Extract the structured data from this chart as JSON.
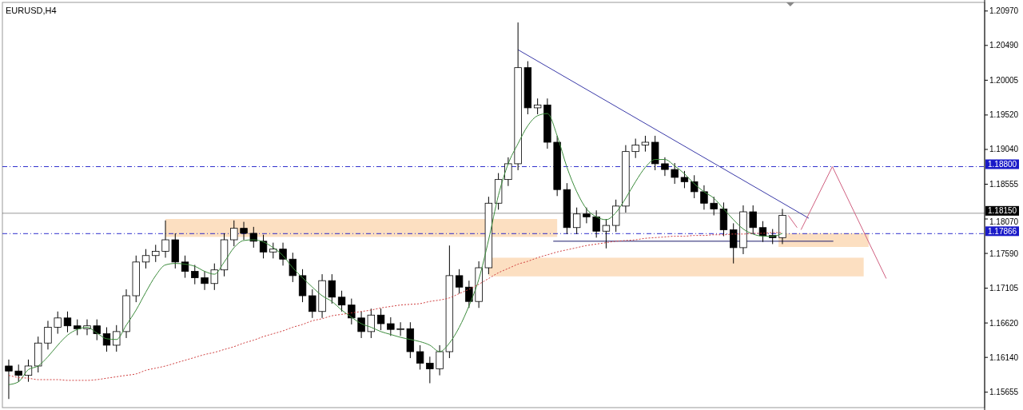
{
  "chart_data": {
    "type": "candlestick",
    "title": "EURUSD,H4",
    "categories": [
      null,
      null,
      null,
      null,
      null,
      null,
      null,
      null,
      null,
      null,
      null,
      null,
      null,
      null,
      null,
      null,
      null,
      null,
      null,
      null,
      null,
      null,
      null,
      null,
      null,
      null,
      null,
      null,
      null,
      null,
      null,
      null,
      null,
      null,
      null,
      null,
      null,
      null,
      null,
      null,
      null,
      null,
      null,
      null,
      null,
      null,
      null,
      null,
      null,
      null,
      null,
      null,
      null,
      null,
      null,
      null,
      null,
      null,
      null,
      null,
      null,
      null,
      null,
      null,
      null,
      null,
      null,
      null,
      null,
      null,
      null,
      null,
      null,
      null,
      null,
      null,
      null,
      null,
      null,
      null,
      null,
      null,
      null,
      null,
      null,
      null,
      null,
      null,
      null,
      null,
      null,
      null,
      null,
      null,
      null,
      null,
      null,
      null,
      null,
      null
    ],
    "ohlc": [
      [
        1.1602,
        1.1611,
        1.1556,
        1.1595
      ],
      [
        1.1595,
        1.1604,
        1.158,
        1.1589
      ],
      [
        1.1589,
        1.1611,
        1.158,
        1.1602
      ],
      [
        1.1602,
        1.1643,
        1.1593,
        1.1634
      ],
      [
        1.1634,
        1.1665,
        1.1625,
        1.1656
      ],
      [
        1.1656,
        1.1678,
        1.1647,
        1.1669
      ],
      [
        1.1669,
        1.1678,
        1.1649,
        1.1658
      ],
      [
        1.1658,
        1.1667,
        1.1645,
        1.1654
      ],
      [
        1.1654,
        1.1667,
        1.1645,
        1.1658
      ],
      [
        1.1658,
        1.1667,
        1.1638,
        1.1647
      ],
      [
        1.1647,
        1.1656,
        1.1622,
        1.1631
      ],
      [
        1.1631,
        1.1659,
        1.1622,
        1.165
      ],
      [
        1.165,
        1.1709,
        1.1641,
        1.17
      ],
      [
        1.17,
        1.1756,
        1.1691,
        1.1747
      ],
      [
        1.1747,
        1.1765,
        1.1738,
        1.1756
      ],
      [
        1.1756,
        1.1771,
        1.1747,
        1.1762
      ],
      [
        1.1762,
        1.1805,
        1.1753,
        1.1778
      ],
      [
        1.1778,
        1.1787,
        1.1738,
        1.1747
      ],
      [
        1.1747,
        1.1756,
        1.1725,
        1.1734
      ],
      [
        1.1734,
        1.1743,
        1.1716,
        1.1725
      ],
      [
        1.1725,
        1.1734,
        1.1708,
        1.1717
      ],
      [
        1.1717,
        1.1745,
        1.1708,
        1.1736
      ],
      [
        1.1736,
        1.1787,
        1.1727,
        1.1778
      ],
      [
        1.1778,
        1.1805,
        1.1769,
        1.1794
      ],
      [
        1.1794,
        1.1803,
        1.1778,
        1.1787
      ],
      [
        1.1787,
        1.1796,
        1.1767,
        1.1776
      ],
      [
        1.1776,
        1.1785,
        1.1752,
        1.1761
      ],
      [
        1.1761,
        1.1774,
        1.1752,
        1.1765
      ],
      [
        1.1765,
        1.1774,
        1.1742,
        1.1751
      ],
      [
        1.1751,
        1.176,
        1.1719,
        1.1728
      ],
      [
        1.1728,
        1.1737,
        1.1691,
        1.17
      ],
      [
        1.17,
        1.1709,
        1.1669,
        1.1678
      ],
      [
        1.1678,
        1.173,
        1.1669,
        1.1721
      ],
      [
        1.1721,
        1.173,
        1.1689,
        1.1698
      ],
      [
        1.1698,
        1.1707,
        1.1678,
        1.1687
      ],
      [
        1.1687,
        1.1696,
        1.166,
        1.1669
      ],
      [
        1.1669,
        1.1678,
        1.1641,
        1.165
      ],
      [
        1.165,
        1.1682,
        1.1641,
        1.1673
      ],
      [
        1.1673,
        1.1682,
        1.1652,
        1.1661
      ],
      [
        1.1661,
        1.167,
        1.1644,
        1.1653
      ],
      [
        1.1653,
        1.1663,
        1.1644,
        1.1654
      ],
      [
        1.1654,
        1.1663,
        1.1613,
        1.1622
      ],
      [
        1.1622,
        1.1631,
        1.1597,
        1.1606
      ],
      [
        1.1606,
        1.1615,
        1.1578,
        1.1598
      ],
      [
        1.1598,
        1.1631,
        1.1589,
        1.1622
      ],
      [
        1.1622,
        1.177,
        1.1613,
        1.1728
      ],
      [
        1.1728,
        1.1737,
        1.1703,
        1.1712
      ],
      [
        1.1712,
        1.1721,
        1.1683,
        1.1692
      ],
      [
        1.1692,
        1.1748,
        1.1683,
        1.1739
      ],
      [
        1.1739,
        1.1838,
        1.173,
        1.1829
      ],
      [
        1.1829,
        1.1871,
        1.182,
        1.1862
      ],
      [
        1.1862,
        1.1893,
        1.1853,
        1.1884
      ],
      [
        1.1884,
        1.2081,
        1.1875,
        1.2018
      ],
      [
        1.2018,
        1.2027,
        1.1953,
        1.1962
      ],
      [
        1.1962,
        1.1975,
        1.1953,
        1.1966
      ],
      [
        1.1966,
        1.1975,
        1.1905,
        1.1914
      ],
      [
        1.1914,
        1.1923,
        1.1839,
        1.1848
      ],
      [
        1.1848,
        1.1857,
        1.1786,
        1.1795
      ],
      [
        1.1795,
        1.1823,
        1.1786,
        1.1814
      ],
      [
        1.1814,
        1.1823,
        1.1801,
        1.181
      ],
      [
        1.181,
        1.1819,
        1.1781,
        1.179
      ],
      [
        1.179,
        1.1807,
        1.1766,
        1.1798
      ],
      [
        1.1798,
        1.1834,
        1.1789,
        1.1825
      ],
      [
        1.1825,
        1.191,
        1.1816,
        1.1901
      ],
      [
        1.1901,
        1.1919,
        1.1892,
        1.191
      ],
      [
        1.191,
        1.1923,
        1.1901,
        1.1914
      ],
      [
        1.1914,
        1.1923,
        1.1875,
        1.1884
      ],
      [
        1.1884,
        1.1893,
        1.1867,
        1.1876
      ],
      [
        1.1876,
        1.1885,
        1.1856,
        1.1865
      ],
      [
        1.1865,
        1.1874,
        1.185,
        1.1859
      ],
      [
        1.1859,
        1.1868,
        1.1836,
        1.1845
      ],
      [
        1.1845,
        1.1854,
        1.182,
        1.1829
      ],
      [
        1.1829,
        1.1838,
        1.1812,
        1.1821
      ],
      [
        1.1821,
        1.183,
        1.1783,
        1.1792
      ],
      [
        1.1792,
        1.1801,
        1.1745,
        1.1767
      ],
      [
        1.1767,
        1.1826,
        1.1758,
        1.1817
      ],
      [
        1.1817,
        1.1826,
        1.1786,
        1.1795
      ],
      [
        1.1795,
        1.1804,
        1.1775,
        1.1784
      ],
      [
        1.1784,
        1.1793,
        1.1772,
        1.1781
      ],
      [
        1.1781,
        1.1821,
        1.1772,
        1.1812
      ],
      null,
      null,
      null,
      null,
      null,
      null,
      null,
      null,
      null,
      null,
      null,
      null,
      null,
      null,
      null,
      null,
      null,
      null,
      null,
      null
    ],
    "series": [
      {
        "type": "line",
        "color": "#3c8c3c",
        "values": [
          1.1576,
          1.158,
          1.1597,
          1.1602,
          1.1615,
          1.1631,
          1.1645,
          1.1653,
          1.1656,
          1.1648,
          1.164,
          1.1639,
          1.1659,
          1.168,
          1.1705,
          1.1728,
          1.1743,
          1.1745,
          1.1744,
          1.1741,
          1.1734,
          1.173,
          1.1747,
          1.1767,
          1.1777,
          1.1778,
          1.1775,
          1.1767,
          1.1756,
          1.1739,
          1.1725,
          1.1712,
          1.17,
          1.1692,
          1.168,
          1.167,
          1.1661,
          1.1656,
          1.165,
          1.1646,
          1.1642,
          1.1639,
          1.1636,
          1.1631,
          1.1622,
          1.1634,
          1.1656,
          1.1686,
          1.1723,
          1.1778,
          1.184,
          1.1884,
          1.1912,
          1.1937,
          1.1951,
          1.1954,
          1.1923,
          1.1879,
          1.1845,
          1.1821,
          1.181,
          1.1806,
          1.1816,
          1.1836,
          1.1859,
          1.1879,
          1.189,
          1.189,
          1.1881,
          1.187,
          1.1856,
          1.1845,
          1.1836,
          1.1821,
          1.1806,
          1.1793,
          1.1786,
          1.1783,
          1.1783,
          1.1787,
          null,
          null,
          null,
          null,
          null,
          null,
          null,
          null,
          null,
          null,
          null,
          null,
          null,
          null,
          null,
          null,
          null,
          null,
          null,
          null
        ]
      },
      {
        "type": "line",
        "color": "#d04040",
        "line_style": "dotted",
        "values": [
          1.1589,
          1.1586,
          1.1585,
          1.1583,
          1.1583,
          1.1583,
          1.1582,
          1.1582,
          1.1582,
          1.1583,
          1.1585,
          1.1587,
          1.1589,
          1.1591,
          1.1596,
          1.1599,
          1.1602,
          1.1606,
          1.161,
          1.1614,
          1.1618,
          1.1621,
          1.1625,
          1.1629,
          1.1634,
          1.1638,
          1.1643,
          1.1647,
          1.1651,
          1.1656,
          1.166,
          1.1665,
          1.1668,
          1.1672,
          1.1674,
          1.1676,
          1.1678,
          1.168,
          1.1683,
          1.1685,
          1.1687,
          1.1688,
          1.1689,
          1.1692,
          1.1694,
          1.1697,
          1.1703,
          1.1709,
          1.1716,
          1.1724,
          1.1732,
          1.1738,
          1.1744,
          1.1748,
          1.1753,
          1.1757,
          1.1761,
          1.1764,
          1.1767,
          1.177,
          1.1772,
          1.1774,
          1.1776,
          1.1777,
          1.1778,
          1.178,
          1.1781,
          1.1782,
          1.1783,
          1.1783,
          1.1784,
          1.1784,
          1.1785,
          1.1785,
          1.1786,
          1.1786,
          1.1787,
          1.1787,
          1.1788,
          1.1788,
          null,
          null,
          null,
          null,
          null,
          null,
          null,
          null,
          null,
          null,
          null,
          null,
          null,
          null,
          null,
          null,
          null,
          null,
          null,
          null
        ]
      }
    ],
    "ylim": [
      1.1544,
      1.2109
    ],
    "yticks": [
      {
        "value": 1.2097,
        "label": "1.20970"
      },
      {
        "value": 1.2049,
        "label": "1.20490"
      },
      {
        "value": 1.20005,
        "label": "1.20005"
      },
      {
        "value": 1.1952,
        "label": "1.19520"
      },
      {
        "value": 1.1904,
        "label": "1.19040"
      },
      {
        "value": 1.18555,
        "label": "1.18555"
      },
      {
        "value": 1.1807,
        "label": "1.18070"
      },
      {
        "value": 1.1759,
        "label": "1.17590"
      },
      {
        "value": 1.17105,
        "label": "1.17105"
      },
      {
        "value": 1.1662,
        "label": "1.16620"
      },
      {
        "value": 1.1614,
        "label": "1.16140"
      },
      {
        "value": 1.15655,
        "label": "1.15655"
      }
    ],
    "ref_lines": [
      {
        "axis": "y",
        "value": 1.188,
        "label": "1.18800",
        "color": "#1a1ac8",
        "line_style": "dashdot"
      },
      {
        "axis": "y",
        "value": 1.1815,
        "label": "1.18150",
        "color": "#000000",
        "line_style": "solid"
      },
      {
        "axis": "y",
        "value": 1.17866,
        "label": "1.17866",
        "color": "#1a1ac8",
        "line_style": "dashdot"
      }
    ],
    "tick_labels": "y",
    "grid": false
  }
}
